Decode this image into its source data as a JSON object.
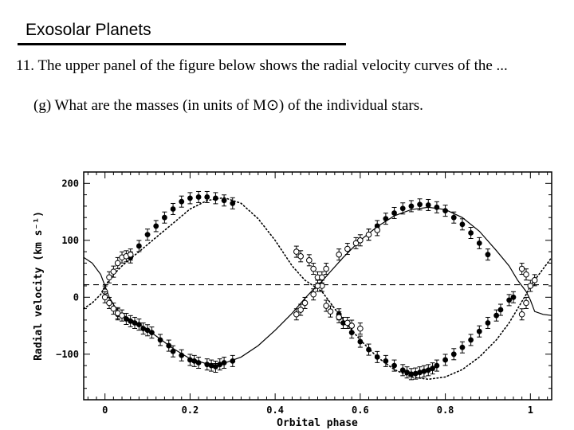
{
  "slide": {
    "title": "Exosolar Planets",
    "question": "11. The upper panel of the figure below shows the radial velocity curves of the ...",
    "subquestion_prefix": "(g) What are the masses (in units of M",
    "subquestion_symbol": "⊙",
    "subquestion_suffix": ") of the individual stars."
  },
  "chart_data": {
    "type": "scatter",
    "title": "",
    "xlabel": "Orbital phase",
    "ylabel": "Radial velocity (km s⁻¹)",
    "xlim": [
      -0.05,
      1.05
    ],
    "ylim": [
      -180,
      220
    ],
    "xticks": [
      0,
      0.2,
      0.4,
      0.6,
      0.8,
      1
    ],
    "xtick_labels": [
      "0",
      "0.2",
      "0.4",
      "0.6",
      "0.8",
      "1"
    ],
    "yticks": [
      -100,
      0,
      100,
      200
    ],
    "ytick_labels": [
      "−100",
      "0",
      "100",
      "200"
    ],
    "systemic_velocity": 22,
    "grid": false,
    "series": [
      {
        "marker": "filled",
        "x": [
          0.03,
          0.05,
          0.06,
          0.07,
          0.08,
          0.09,
          0.1,
          0.11,
          0.13,
          0.15,
          0.16,
          0.18,
          0.2,
          0.21,
          0.22,
          0.24,
          0.25,
          0.26,
          0.27,
          0.28,
          0.3,
          0.55,
          0.56,
          0.58,
          0.6,
          0.62,
          0.64,
          0.66,
          0.68,
          0.7,
          0.71,
          0.72,
          0.73,
          0.74,
          0.75,
          0.76,
          0.77,
          0.78,
          0.8,
          0.82,
          0.84,
          0.86,
          0.88,
          0.9,
          0.92,
          0.93,
          0.95,
          0.96
        ],
        "y": [
          -30,
          -38,
          -42,
          -45,
          -48,
          -55,
          -58,
          -62,
          -75,
          -85,
          -95,
          -102,
          -110,
          -112,
          -115,
          -118,
          -120,
          -122,
          -118,
          -115,
          -112,
          -30,
          -45,
          -62,
          -78,
          -92,
          -105,
          -112,
          -120,
          -128,
          -132,
          -135,
          -134,
          -132,
          -130,
          -128,
          -125,
          -120,
          -110,
          -100,
          -88,
          -75,
          -60,
          -45,
          -32,
          -22,
          -5,
          0
        ]
      },
      {
        "marker": "filled",
        "x": [
          0.06,
          0.08,
          0.1,
          0.12,
          0.14,
          0.16,
          0.18,
          0.2,
          0.22,
          0.24,
          0.26,
          0.28,
          0.3,
          0.62,
          0.64,
          0.66,
          0.68,
          0.7,
          0.72,
          0.74,
          0.76,
          0.78,
          0.8,
          0.82,
          0.84,
          0.86,
          0.88,
          0.9
        ],
        "y": [
          70,
          90,
          110,
          125,
          140,
          155,
          168,
          174,
          176,
          176,
          174,
          170,
          165,
          110,
          125,
          138,
          148,
          156,
          160,
          163,
          162,
          158,
          152,
          140,
          128,
          113,
          95,
          75
        ]
      },
      {
        "marker": "open",
        "x": [
          0.0,
          0.01,
          0.02,
          0.03,
          0.04,
          0.05,
          0.06,
          0.45,
          0.46,
          0.48,
          0.49,
          0.5,
          0.51,
          0.52,
          0.53,
          0.55,
          0.57,
          0.58,
          0.6,
          0.98,
          0.99,
          1.0,
          1.01
        ],
        "y": [
          10,
          35,
          45,
          60,
          70,
          72,
          75,
          80,
          72,
          65,
          50,
          35,
          20,
          -15,
          -25,
          -35,
          -45,
          -50,
          -55,
          -30,
          -10,
          20,
          30
        ]
      },
      {
        "marker": "open",
        "x": [
          0.0,
          0.01,
          0.02,
          0.03,
          0.04,
          0.45,
          0.46,
          0.47,
          0.49,
          0.5,
          0.51,
          0.52,
          0.55,
          0.57,
          0.59,
          0.6,
          0.62,
          0.64,
          0.98,
          0.99
        ],
        "y": [
          0,
          -10,
          -20,
          -28,
          -32,
          -30,
          -22,
          -10,
          5,
          20,
          35,
          50,
          75,
          85,
          95,
          100,
          110,
          118,
          50,
          40
        ]
      }
    ],
    "models": [
      {
        "name": "",
        "style": "solid",
        "x": [
          -0.05,
          -0.03,
          -0.01,
          0.0,
          0.01,
          0.03,
          0.05,
          0.08,
          0.12,
          0.16,
          0.2,
          0.24,
          0.28,
          0.32,
          0.36,
          0.4,
          0.44,
          0.47,
          0.49,
          0.51,
          0.53,
          0.56,
          0.6,
          0.64,
          0.68,
          0.72,
          0.76,
          0.8,
          0.84,
          0.88,
          0.92,
          0.95,
          0.97,
          0.99,
          1.0,
          1.01,
          1.03,
          1.05
        ],
        "y": [
          70,
          60,
          40,
          20,
          0,
          -25,
          -35,
          -47,
          -68,
          -90,
          -108,
          -117,
          -116,
          -105,
          -85,
          -58,
          -28,
          -2,
          14,
          28,
          45,
          70,
          100,
          124,
          143,
          154,
          158,
          154,
          140,
          116,
          82,
          55,
          30,
          10,
          -5,
          -25,
          -30,
          -32
        ]
      },
      {
        "name": "",
        "style": "dotted",
        "x": [
          -0.05,
          -0.03,
          -0.01,
          0.0,
          0.02,
          0.04,
          0.06,
          0.08,
          0.12,
          0.16,
          0.2,
          0.24,
          0.28,
          0.32,
          0.36,
          0.4,
          0.44,
          0.47,
          0.49,
          0.51,
          0.53,
          0.56,
          0.6,
          0.64,
          0.68,
          0.72,
          0.76,
          0.8,
          0.84,
          0.88,
          0.92,
          0.95,
          0.97,
          0.99,
          1.0,
          1.02,
          1.05
        ],
        "y": [
          -20,
          -10,
          5,
          20,
          40,
          55,
          68,
          80,
          105,
          130,
          155,
          170,
          175,
          165,
          138,
          100,
          55,
          30,
          20,
          10,
          -10,
          -40,
          -75,
          -105,
          -127,
          -140,
          -144,
          -140,
          -127,
          -105,
          -75,
          -45,
          -20,
          5,
          20,
          40,
          70
        ]
      }
    ]
  }
}
